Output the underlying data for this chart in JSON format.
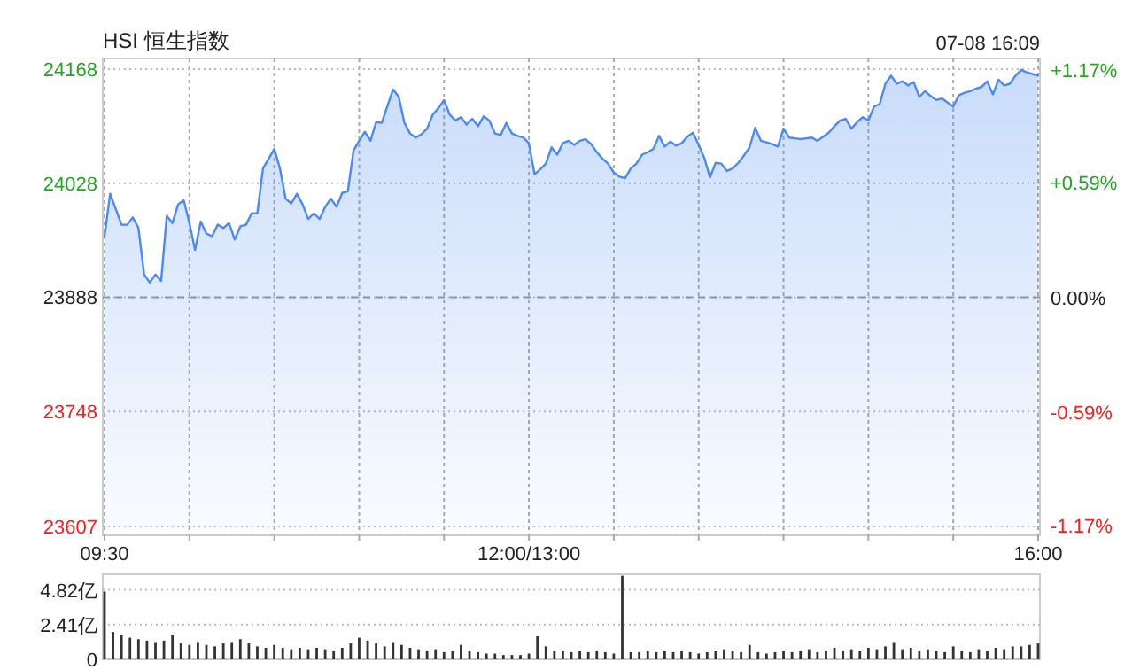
{
  "chart_data": [
    {
      "type": "area",
      "title": "HSI 恒生指数",
      "annotations": [
        "07-08 16:09"
      ],
      "categories": [
        "09:30",
        null,
        null,
        null,
        null,
        null,
        null,
        null,
        null,
        null,
        null,
        null,
        null,
        null,
        null,
        null,
        null,
        null,
        null,
        null,
        null,
        null,
        null,
        null,
        null,
        null,
        null,
        null,
        null,
        null,
        null,
        null,
        null,
        null,
        null,
        null,
        null,
        null,
        null,
        null,
        null,
        null,
        null,
        null,
        null,
        null,
        null,
        null,
        null,
        null,
        null,
        null,
        null,
        null,
        null,
        null,
        null,
        null,
        null,
        null,
        null,
        null,
        null,
        null,
        null,
        null,
        null,
        null,
        null,
        null,
        null,
        null,
        null,
        null,
        null,
        "12:00/13:00",
        null,
        null,
        null,
        null,
        null,
        null,
        null,
        null,
        null,
        null,
        null,
        null,
        null,
        null,
        null,
        null,
        null,
        null,
        null,
        null,
        null,
        null,
        null,
        null,
        null,
        null,
        null,
        null,
        null,
        null,
        null,
        null,
        null,
        null,
        null,
        null,
        null,
        null,
        null,
        null,
        null,
        null,
        null,
        null,
        null,
        null,
        null,
        null,
        null,
        null,
        null,
        null,
        null,
        null,
        null,
        null,
        null,
        null,
        null,
        null,
        null,
        null,
        null,
        null,
        null,
        null,
        null,
        null,
        null,
        null,
        null,
        null,
        null,
        null,
        null,
        null,
        null,
        null,
        null,
        null,
        null,
        null,
        null,
        null,
        null,
        null,
        null,
        null,
        null,
        "16:00"
      ],
      "series": [
        {
          "color": "#4d8af0",
          "values": [
            23963,
            24015,
            23996,
            23977,
            23977,
            23986,
            23973,
            23916,
            23906,
            23916,
            23908,
            23988,
            23979,
            24002,
            24007,
            23979,
            23946,
            23981,
            23966,
            23963,
            23977,
            23973,
            23979,
            23959,
            23975,
            23977,
            23991,
            23991,
            24046,
            24058,
            24070,
            24046,
            24009,
            24003,
            24015,
            24002,
            23984,
            23991,
            23984,
            23999,
            24009,
            23999,
            24016,
            24018,
            24068,
            24080,
            24091,
            24080,
            24103,
            24102,
            24123,
            24143,
            24134,
            24102,
            24089,
            24084,
            24088,
            24095,
            24112,
            24120,
            24130,
            24112,
            24105,
            24109,
            24100,
            24107,
            24098,
            24110,
            24105,
            24089,
            24087,
            24102,
            24089,
            24086,
            24084,
            24077,
            24039,
            24045,
            24052,
            24072,
            24063,
            24077,
            24080,
            24075,
            24080,
            24082,
            24076,
            24066,
            24058,
            24052,
            24041,
            24036,
            24034,
            24046,
            24052,
            24063,
            24066,
            24070,
            24086,
            24073,
            24079,
            24074,
            24077,
            24085,
            24090,
            24075,
            24059,
            24035,
            24053,
            24052,
            24043,
            24046,
            24053,
            24062,
            24072,
            24096,
            24080,
            24078,
            24076,
            24073,
            24095,
            24084,
            24083,
            24082,
            24083,
            24084,
            24080,
            24085,
            24090,
            24098,
            24105,
            24107,
            24095,
            24103,
            24109,
            24105,
            24122,
            24125,
            24150,
            24160,
            24150,
            24153,
            24148,
            24152,
            24134,
            24141,
            24135,
            24130,
            24132,
            24127,
            24122,
            24136,
            24139,
            24141,
            24144,
            24146,
            24153,
            24137,
            24155,
            24148,
            24150,
            24160,
            24167,
            24164,
            24162,
            24160
          ]
        }
      ],
      "ylim": [
        23596,
        24181
      ],
      "yticks": [
        23607,
        23748,
        23888,
        24028,
        24168
      ],
      "y2lim": [
        -1.222,
        1.227
      ],
      "y2ticks": [
        {
          "value": -1.17,
          "label": "-1.17%"
        },
        {
          "value": -0.59,
          "label": "-0.59%"
        },
        {
          "value": 0,
          "label": "0.00%"
        },
        {
          "value": 0.59,
          "label": "+0.59%"
        },
        {
          "value": 1.17,
          "label": "+1.17%"
        }
      ],
      "ref_lines": [
        {
          "axis": "y",
          "value": 23888,
          "line_style": "dashed"
        }
      ],
      "grid": true
    },
    {
      "type": "bar",
      "categories": [
        null,
        null,
        null,
        null,
        null,
        null,
        null,
        null,
        null,
        null,
        null,
        null,
        null,
        null,
        null,
        null,
        null,
        null,
        null,
        null,
        null,
        null,
        null,
        null,
        null,
        null,
        null,
        null,
        null,
        null,
        null,
        null,
        null,
        null,
        null,
        null,
        null,
        null,
        null,
        null,
        null,
        null,
        null,
        null,
        null,
        null,
        null,
        null,
        null,
        null,
        null,
        null,
        null,
        null,
        null,
        null,
        null,
        null,
        null,
        null,
        null,
        null,
        null,
        null,
        null,
        null,
        null,
        null,
        null,
        null,
        null,
        null,
        null,
        null,
        null,
        null,
        null,
        null,
        null,
        null,
        null,
        null,
        null,
        null,
        null,
        null,
        null,
        null,
        null,
        null,
        null,
        null,
        null,
        null,
        null,
        null,
        null,
        null,
        null,
        null,
        null,
        null,
        null,
        null,
        null,
        null,
        null,
        null,
        null,
        null,
        null
      ],
      "series": [
        {
          "color": "#333333",
          "values": [
            4.7,
            1.9,
            1.7,
            1.5,
            1.4,
            1.3,
            1.2,
            1.3,
            1.7,
            1.1,
            1.0,
            1.2,
            1.0,
            0.9,
            1.1,
            1.2,
            1.4,
            1.1,
            0.9,
            0.8,
            1.0,
            0.8,
            0.7,
            0.8,
            0.7,
            0.8,
            0.7,
            0.6,
            0.8,
            1.1,
            1.5,
            1.3,
            1.1,
            0.9,
            1.2,
            1.0,
            0.8,
            0.7,
            0.6,
            0.7,
            0.5,
            0.6,
            1.0,
            0.6,
            0.5,
            0.4,
            0.4,
            0.3,
            0.3,
            0.3,
            0.4,
            1.6,
            0.9,
            0.6,
            0.6,
            0.5,
            0.6,
            0.5,
            0.6,
            0.5,
            0.4,
            5.8,
            0.5,
            0.5,
            0.6,
            0.5,
            0.6,
            0.5,
            0.6,
            0.5,
            0.4,
            0.5,
            0.6,
            0.7,
            0.6,
            0.5,
            1.0,
            0.5,
            0.4,
            0.5,
            0.6,
            0.5,
            0.6,
            0.7,
            0.5,
            0.6,
            0.8,
            0.6,
            0.7,
            0.6,
            0.8,
            0.7,
            0.9,
            1.2,
            0.7,
            0.8,
            0.6,
            0.7,
            0.6,
            0.5,
            0.9,
            0.6,
            0.5,
            0.7,
            0.6,
            0.8,
            0.7,
            0.9,
            0.9,
            1.0,
            1.1
          ]
        }
      ],
      "ylim": [
        0,
        5.9
      ],
      "yticks": [
        0,
        {
          "value": 2.41,
          "label": "2.41亿"
        },
        {
          "value": 4.82,
          "label": "4.82亿"
        }
      ],
      "grid": "y",
      "tick_labels": "y"
    }
  ]
}
